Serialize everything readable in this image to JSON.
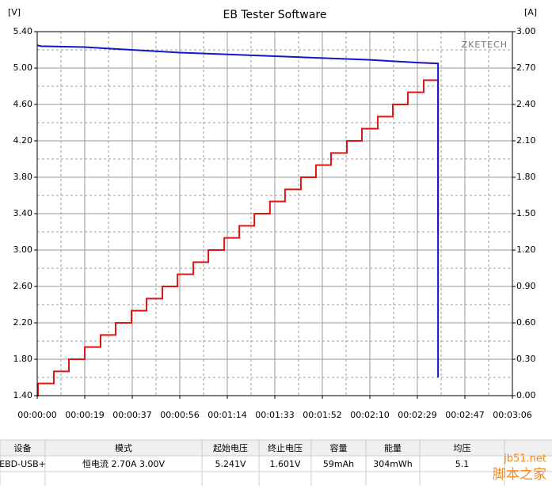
{
  "chart_data": {
    "type": "line",
    "title": "EB Tester Software",
    "y_label": "[V]",
    "y2_label": "[A]",
    "annotation": "ZKETECH",
    "xlim": [
      0,
      186
    ],
    "xticks": [
      {
        "value": 0,
        "label": "00:00:00"
      },
      {
        "value": 18.6,
        "label": "00:00:19"
      },
      {
        "value": 37.2,
        "label": "00:00:37"
      },
      {
        "value": 55.8,
        "label": "00:00:56"
      },
      {
        "value": 74.4,
        "label": "00:01:14"
      },
      {
        "value": 93,
        "label": "00:01:33"
      },
      {
        "value": 111.6,
        "label": "00:01:52"
      },
      {
        "value": 130.2,
        "label": "00:02:10"
      },
      {
        "value": 148.8,
        "label": "00:02:29"
      },
      {
        "value": 167.4,
        "label": "00:02:47"
      },
      {
        "value": 186,
        "label": "00:03:06"
      }
    ],
    "ylim": [
      1.4,
      5.4
    ],
    "yticks": [
      {
        "value": 1.4,
        "label": "1.40"
      },
      {
        "value": 1.8,
        "label": "1.80"
      },
      {
        "value": 2.2,
        "label": "2.20"
      },
      {
        "value": 2.6,
        "label": "2.60"
      },
      {
        "value": 3,
        "label": "3.00"
      },
      {
        "value": 3.4,
        "label": "3.40"
      },
      {
        "value": 3.8,
        "label": "3.80"
      },
      {
        "value": 4.2,
        "label": "4.20"
      },
      {
        "value": 4.6,
        "label": "4.60"
      },
      {
        "value": 5,
        "label": "5.00"
      },
      {
        "value": 5.4,
        "label": "5.40"
      }
    ],
    "y2lim": [
      0,
      3
    ],
    "y2ticks": [
      {
        "value": 0,
        "label": "0.00"
      },
      {
        "value": 0.3,
        "label": "0.30"
      },
      {
        "value": 0.6,
        "label": "0.60"
      },
      {
        "value": 0.9,
        "label": "0.90"
      },
      {
        "value": 1.2,
        "label": "1.20"
      },
      {
        "value": 1.5,
        "label": "1.50"
      },
      {
        "value": 1.8,
        "label": "1.80"
      },
      {
        "value": 2.1,
        "label": "2.10"
      },
      {
        "value": 2.4,
        "label": "2.40"
      },
      {
        "value": 2.7,
        "label": "2.70"
      },
      {
        "value": 3,
        "label": "3.00"
      }
    ],
    "grid": true,
    "minor_grid": true,
    "series": [
      {
        "color": "#e01414",
        "axis": "y2",
        "x": [
          0,
          0.3,
          0.3,
          6.5,
          6.5,
          12.4,
          12.4,
          18.6,
          18.6,
          24.8,
          24.8,
          30.7,
          30.7,
          36.9,
          36.9,
          42.8,
          42.8,
          49.0,
          49.0,
          54.9,
          54.9,
          61.1,
          61.1,
          67.0,
          67.0,
          73.2,
          73.2,
          79.1,
          79.1,
          85.0,
          85.0,
          91.1,
          91.1,
          97.0,
          97.0,
          103.2,
          103.2,
          109.1,
          109.1,
          115.0,
          115.0,
          121.2,
          121.2,
          127.1,
          127.1,
          133.3,
          133.3,
          139.2,
          139.2,
          145.1,
          145.1,
          151.3,
          151.3,
          156.9,
          156.9
        ],
        "values": [
          0,
          0,
          0.1,
          0.1,
          0.2,
          0.2,
          0.3,
          0.3,
          0.4,
          0.4,
          0.5,
          0.5,
          0.6,
          0.6,
          0.7,
          0.7,
          0.8,
          0.8,
          0.9,
          0.9,
          1.0,
          1.0,
          1.1,
          1.1,
          1.2,
          1.2,
          1.3,
          1.3,
          1.4,
          1.4,
          1.5,
          1.5,
          1.6,
          1.6,
          1.7,
          1.7,
          1.8,
          1.8,
          1.9,
          1.9,
          2.0,
          2.0,
          2.1,
          2.1,
          2.2,
          2.2,
          2.3,
          2.3,
          2.4,
          2.4,
          2.5,
          2.5,
          2.6,
          2.6,
          1.34
        ]
      },
      {
        "color": "#1414c8",
        "x": [
          0,
          1.5,
          18.6,
          55.8,
          93,
          130.2,
          148.8,
          156.9,
          156.9
        ],
        "values": [
          5.25,
          5.24,
          5.23,
          5.17,
          5.13,
          5.09,
          5.06,
          5.05,
          1.6
        ]
      }
    ]
  },
  "table": {
    "headers": [
      "设备",
      "模式",
      "起始电压",
      "终止电压",
      "容量",
      "能量",
      "均压"
    ],
    "rows": [
      [
        "EBD-USB+",
        "恒电流  2.70A  3.00V",
        "5.241V",
        "1.601V",
        "59mAh",
        "304mWh",
        "5.1"
      ]
    ]
  },
  "watermark": {
    "site": "jb51.net",
    "name": "脚本之家"
  }
}
